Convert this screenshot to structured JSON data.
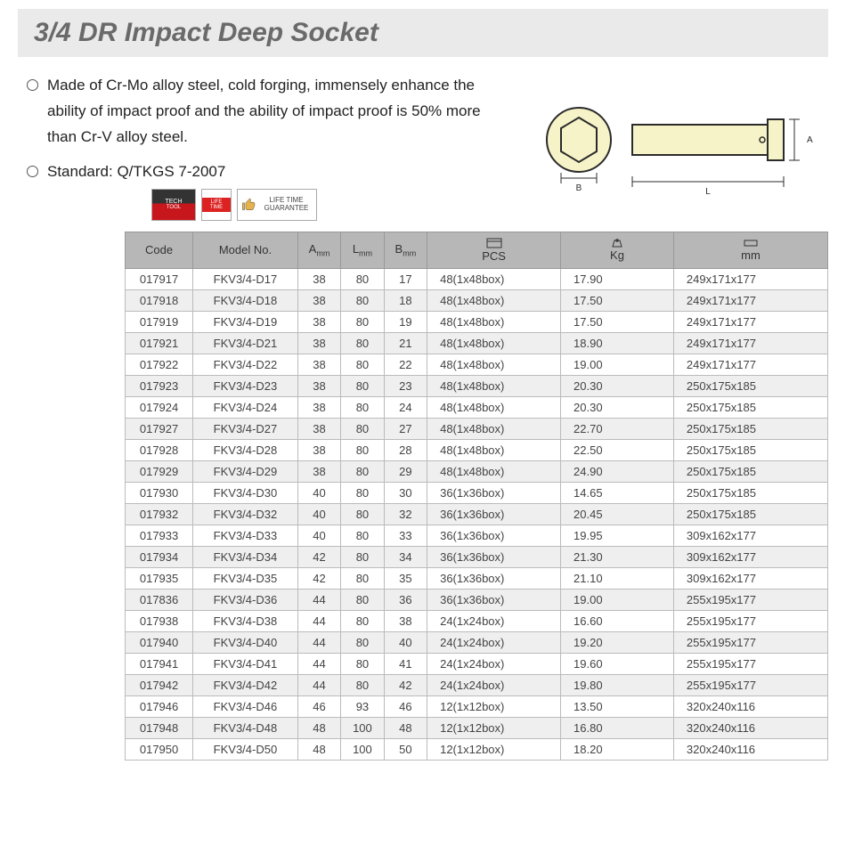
{
  "title": "3/4 DR Impact Deep Socket",
  "bullets": [
    "Made of Cr-Mo alloy steel, cold forging, immensely enhance the ability of impact proof and the ability of impact proof is 50% more than Cr-V alloy steel.",
    "Standard: Q/TKGS 7-2007"
  ],
  "badges": {
    "guarantee": "LIFE TIME GUARANTEE",
    "lifetime": "LIFE TIME"
  },
  "diagram": {
    "hex_fill": "#f6f3c8",
    "body_fill": "#f6f3c8",
    "stroke": "#2b2b2b",
    "label_b": "B",
    "label_l": "L",
    "label_a": "A"
  },
  "columns": [
    "Code",
    "Model No.",
    "A",
    "L",
    "B",
    "PCS",
    "Kg",
    "mm"
  ],
  "col_sub": {
    "A": "mm",
    "L": "mm",
    "B": "mm"
  },
  "header_bg": "#b7b7b7",
  "row_alt_bg": "#efefef",
  "rows": [
    [
      "017917",
      "FKV3/4-D17",
      "38",
      "80",
      "17",
      "48(1x48box)",
      "17.90",
      "249x171x177"
    ],
    [
      "017918",
      "FKV3/4-D18",
      "38",
      "80",
      "18",
      "48(1x48box)",
      "17.50",
      "249x171x177"
    ],
    [
      "017919",
      "FKV3/4-D19",
      "38",
      "80",
      "19",
      "48(1x48box)",
      "17.50",
      "249x171x177"
    ],
    [
      "017921",
      "FKV3/4-D21",
      "38",
      "80",
      "21",
      "48(1x48box)",
      "18.90",
      "249x171x177"
    ],
    [
      "017922",
      "FKV3/4-D22",
      "38",
      "80",
      "22",
      "48(1x48box)",
      "19.00",
      "249x171x177"
    ],
    [
      "017923",
      "FKV3/4-D23",
      "38",
      "80",
      "23",
      "48(1x48box)",
      "20.30",
      "250x175x185"
    ],
    [
      "017924",
      "FKV3/4-D24",
      "38",
      "80",
      "24",
      "48(1x48box)",
      "20.30",
      "250x175x185"
    ],
    [
      "017927",
      "FKV3/4-D27",
      "38",
      "80",
      "27",
      "48(1x48box)",
      "22.70",
      "250x175x185"
    ],
    [
      "017928",
      "FKV3/4-D28",
      "38",
      "80",
      "28",
      "48(1x48box)",
      "22.50",
      "250x175x185"
    ],
    [
      "017929",
      "FKV3/4-D29",
      "38",
      "80",
      "29",
      "48(1x48box)",
      "24.90",
      "250x175x185"
    ],
    [
      "017930",
      "FKV3/4-D30",
      "40",
      "80",
      "30",
      "36(1x36box)",
      "14.65",
      "250x175x185"
    ],
    [
      "017932",
      "FKV3/4-D32",
      "40",
      "80",
      "32",
      "36(1x36box)",
      "20.45",
      "250x175x185"
    ],
    [
      "017933",
      "FKV3/4-D33",
      "40",
      "80",
      "33",
      "36(1x36box)",
      "19.95",
      "309x162x177"
    ],
    [
      "017934",
      "FKV3/4-D34",
      "42",
      "80",
      "34",
      "36(1x36box)",
      "21.30",
      "309x162x177"
    ],
    [
      "017935",
      "FKV3/4-D35",
      "42",
      "80",
      "35",
      "36(1x36box)",
      "21.10",
      "309x162x177"
    ],
    [
      "017836",
      "FKV3/4-D36",
      "44",
      "80",
      "36",
      "36(1x36box)",
      "19.00",
      "255x195x177"
    ],
    [
      "017938",
      "FKV3/4-D38",
      "44",
      "80",
      "38",
      "24(1x24box)",
      "16.60",
      "255x195x177"
    ],
    [
      "017940",
      "FKV3/4-D40",
      "44",
      "80",
      "40",
      "24(1x24box)",
      "19.20",
      "255x195x177"
    ],
    [
      "017941",
      "FKV3/4-D41",
      "44",
      "80",
      "41",
      "24(1x24box)",
      "19.60",
      "255x195x177"
    ],
    [
      "017942",
      "FKV3/4-D42",
      "44",
      "80",
      "42",
      "24(1x24box)",
      "19.80",
      "255x195x177"
    ],
    [
      "017946",
      "FKV3/4-D46",
      "46",
      "93",
      "46",
      "12(1x12box)",
      "13.50",
      "320x240x116"
    ],
    [
      "017948",
      "FKV3/4-D48",
      "48",
      "100",
      "48",
      "12(1x12box)",
      "16.80",
      "320x240x116"
    ],
    [
      "017950",
      "FKV3/4-D50",
      "48",
      "100",
      "50",
      "12(1x12box)",
      "18.20",
      "320x240x116"
    ]
  ]
}
